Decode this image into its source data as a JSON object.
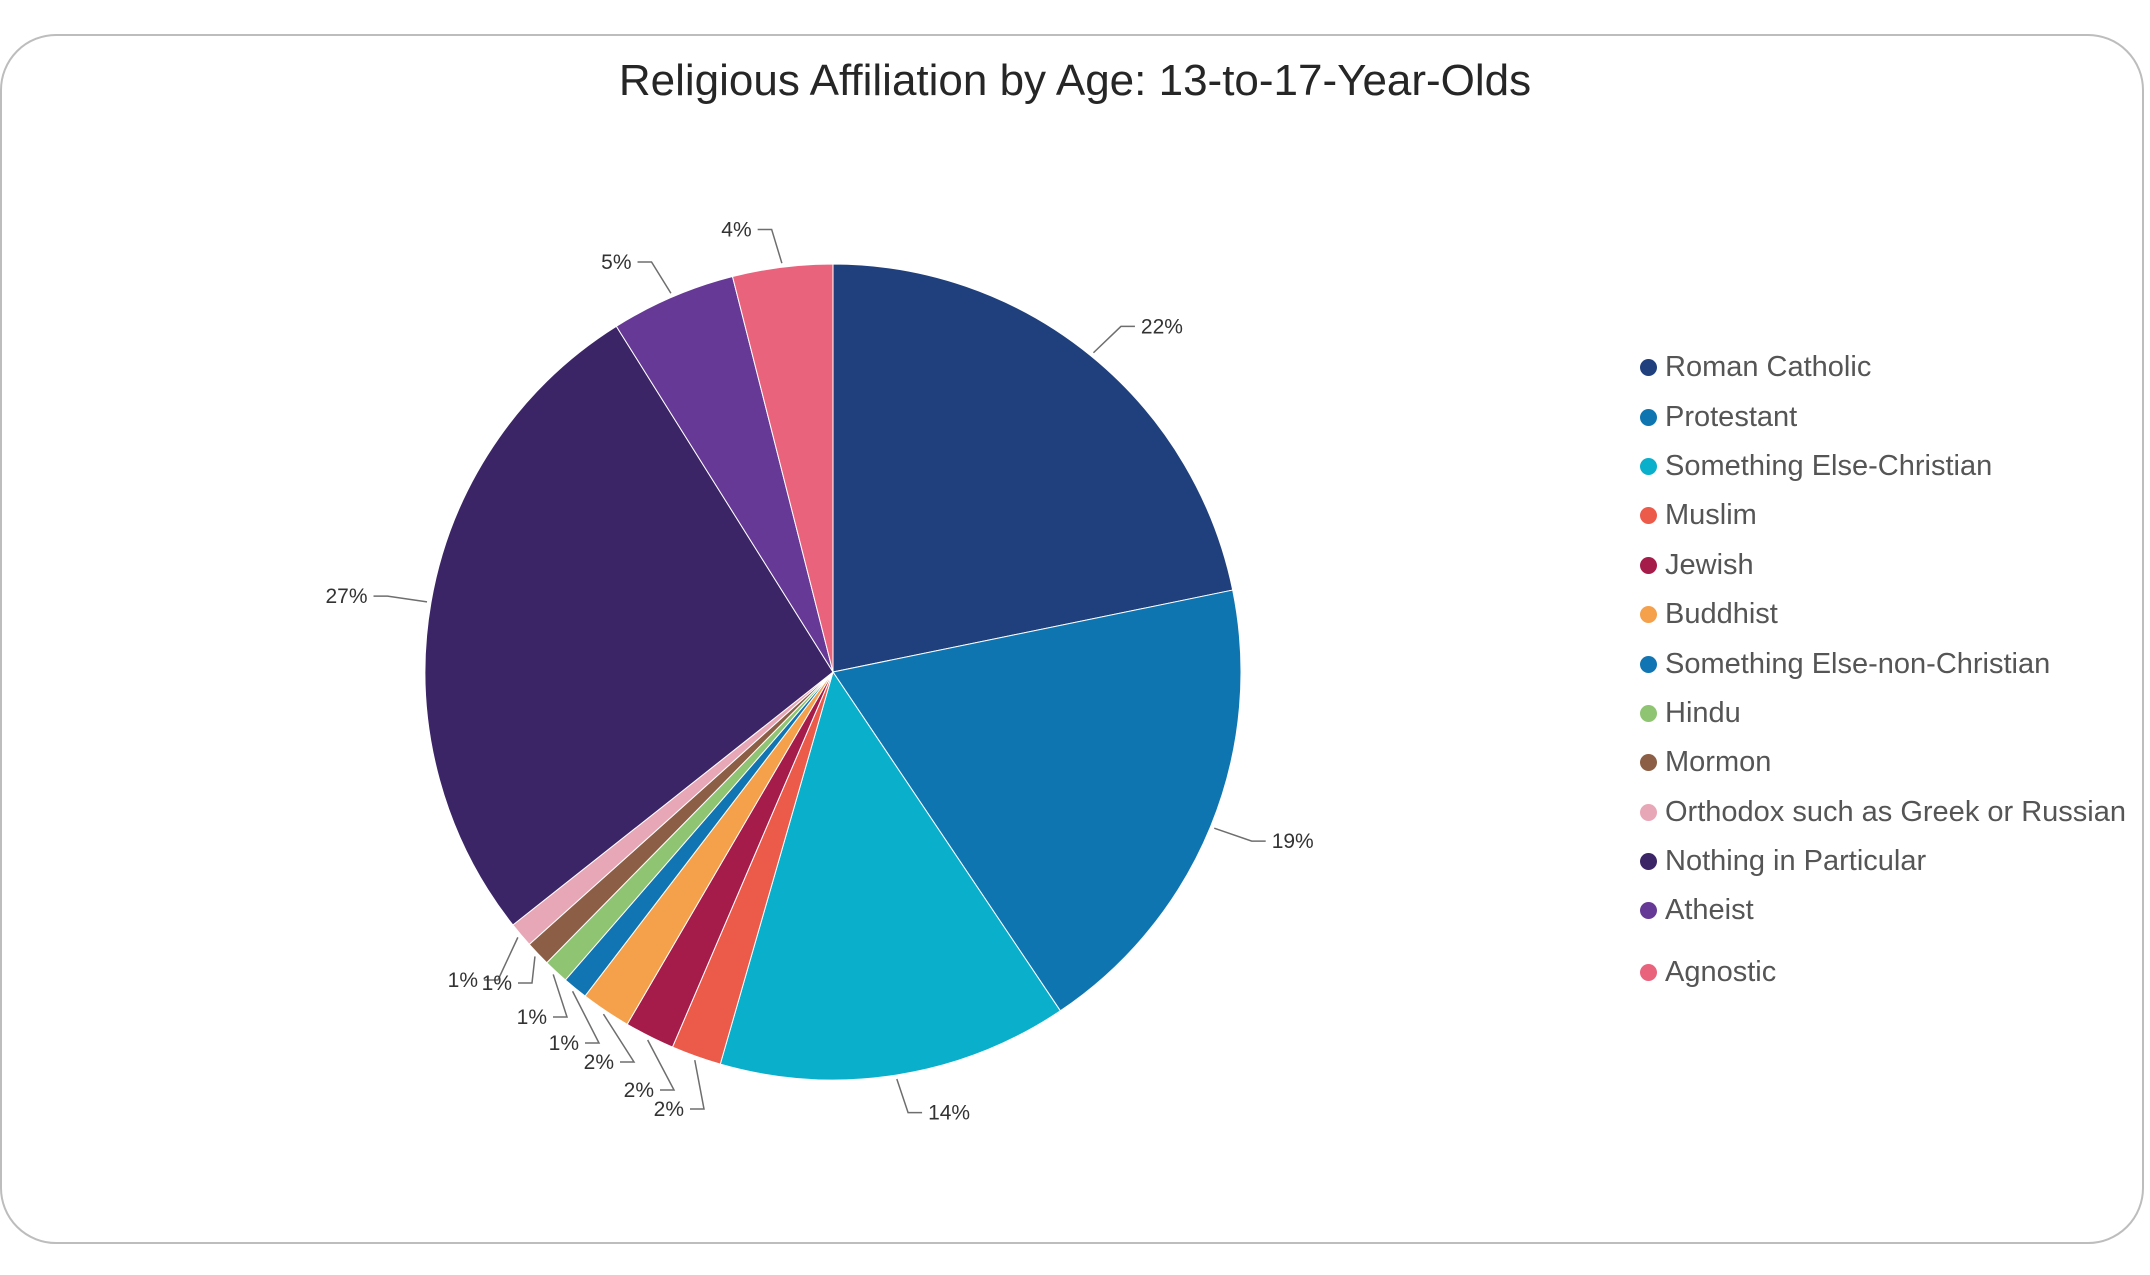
{
  "chart_data": {
    "type": "pie",
    "title": "Religious Affiliation by Age: 13-to-17-Year-Olds",
    "legend_position": "right",
    "slices": [
      {
        "name": "Roman Catholic",
        "value": 22,
        "label": "22%",
        "color": "#20407d"
      },
      {
        "name": "Protestant",
        "value": 19,
        "label": "19%",
        "color": "#0f75b0"
      },
      {
        "name": "Something Else-Christian",
        "value": 14,
        "label": "14%",
        "color": "#0aafcc"
      },
      {
        "name": "Muslim",
        "value": 2,
        "label": "2%",
        "color": "#ec5a4a"
      },
      {
        "name": "Jewish",
        "value": 2,
        "label": "2%",
        "color": "#a51c4b"
      },
      {
        "name": "Buddhist",
        "value": 2,
        "label": "2%",
        "color": "#f5a04b"
      },
      {
        "name": "Something Else-non-Christian",
        "value": 1,
        "label": "1%",
        "color": "#1075b2"
      },
      {
        "name": "Hindu",
        "value": 1,
        "label": "1%",
        "color": "#8fc473"
      },
      {
        "name": "Mormon",
        "value": 1,
        "label": "1%",
        "color": "#8c5e45"
      },
      {
        "name": "Orthodox such as Greek or Russian",
        "value": 1,
        "label": "1%",
        "color": "#e8a7b7"
      },
      {
        "name": "Nothing in Particular",
        "value": 27,
        "label": "27%",
        "color": "#3b2566"
      },
      {
        "name": "Atheist",
        "value": 5,
        "label": "5%",
        "color": "#673996"
      },
      {
        "name": "Agnostic",
        "value": 4,
        "label": "4%",
        "color": "#e9637d"
      }
    ]
  }
}
